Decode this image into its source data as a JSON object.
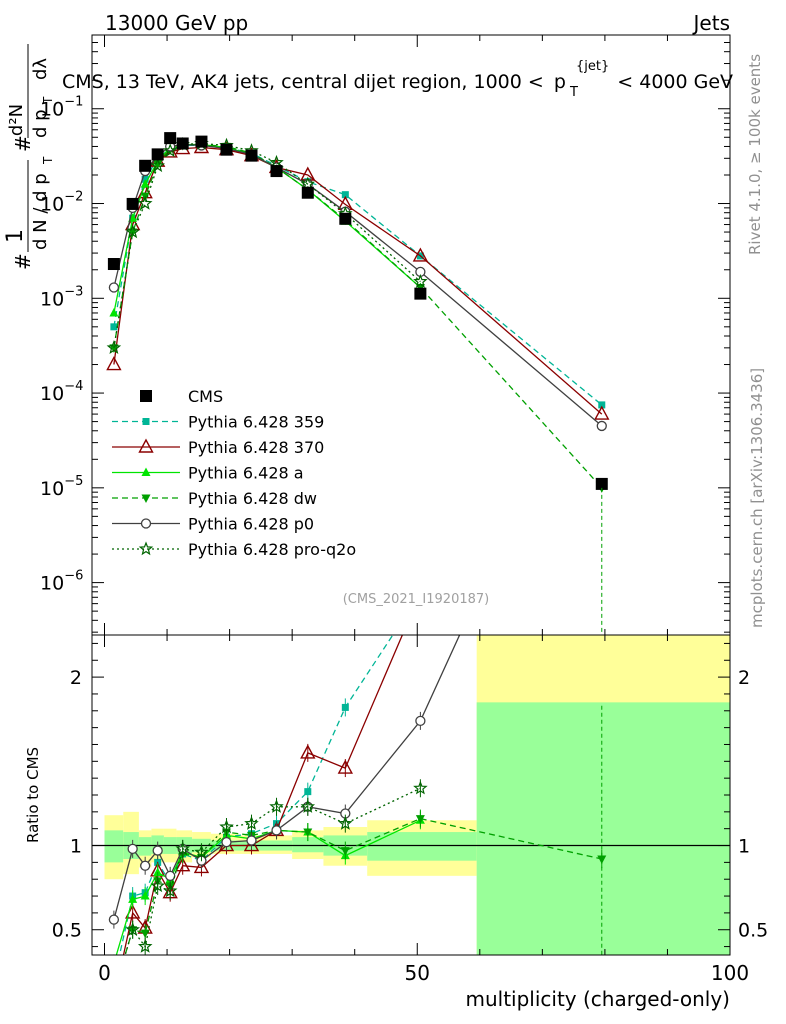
{
  "header": {
    "left": "13000 GeV pp",
    "right": "Jets"
  },
  "side_labels": {
    "rivet": "Rivet 4.1.0, ≥ 100k events",
    "mcplots": "mcplots.cern.ch [arXiv:1306.3436]"
  },
  "watermark": "(CMS_2021_I1920187)",
  "chart_data": [
    {
      "type": "line",
      "title": "CMS, 13 TeV, AK4 jets, central dijet region, 1000 < p_T^{jet} < 4000 GeV",
      "title_parts": {
        "lead": "CMS, 13 TeV, AK4 jets, central dijet region, 1000 <",
        "p": "p",
        "sub": "T",
        "sup": "{jet}",
        "tail": "< 4000 GeV"
      },
      "ylabel": "1/(dN/dp_T) d²N/(dp_T dλ)",
      "ylabel_parts": {
        "hash": "#",
        "one": "1",
        "den": "d N / d p",
        "sub": "T",
        "d2n": "d²N",
        "dpt": "d p",
        "dl": "dλ"
      },
      "yscale": "log",
      "ylim": [
        2.8e-07,
        0.6
      ],
      "xlim": [
        -2,
        100
      ],
      "y_ticks": [
        {
          "v": 1e-06,
          "label": "10",
          "exp": "−6"
        },
        {
          "v": 1e-05,
          "label": "10",
          "exp": "−5"
        },
        {
          "v": 0.0001,
          "label": "10",
          "exp": "−4"
        },
        {
          "v": 0.001,
          "label": "10",
          "exp": "−3"
        },
        {
          "v": 0.01,
          "label": "10",
          "exp": "−2"
        },
        {
          "v": 0.1,
          "label": "10",
          "exp": "−1"
        }
      ],
      "legend_position": "middle-left",
      "series": [
        {
          "name": "CMS",
          "style": "data",
          "color": "#000000",
          "x": [
            1.5,
            4.5,
            6.5,
            8.5,
            10.5,
            12.5,
            15.5,
            19.5,
            23.5,
            27.5,
            32.5,
            38.5,
            50.5,
            79.5
          ],
          "y": [
            0.0023,
            0.0099,
            0.025,
            0.033,
            0.049,
            0.043,
            0.045,
            0.037,
            0.032,
            0.022,
            0.013,
            0.0069,
            0.00112,
            1.1e-05
          ],
          "err": [
            0.0002,
            0.0006,
            0.001,
            0.001,
            0.0015,
            0.0012,
            0.0012,
            0.001,
            0.001,
            0.0008,
            0.0006,
            0.0004,
            0.0001,
            1e-06
          ]
        },
        {
          "name": "Pythia 6.428 359",
          "style": "dashed",
          "marker": "square",
          "color": "#00b596",
          "x": [
            1.5,
            4.5,
            6.5,
            8.5,
            10.5,
            12.5,
            15.5,
            19.5,
            23.5,
            27.5,
            32.5,
            38.5,
            50.5,
            79.5
          ],
          "y": [
            0.0005,
            0.007,
            0.018,
            0.03,
            0.038,
            0.041,
            0.041,
            0.039,
            0.034,
            0.025,
            0.017,
            0.0124,
            0.0028,
            7.5e-05
          ]
        },
        {
          "name": "Pythia 6.428 370",
          "style": "solid",
          "marker": "open-triangle",
          "color": "#8b0000",
          "x": [
            1.5,
            4.5,
            6.5,
            8.5,
            10.5,
            12.5,
            15.5,
            19.5,
            23.5,
            27.5,
            32.5,
            38.5,
            50.5,
            79.5
          ],
          "y": [
            0.0002,
            0.006,
            0.013,
            0.028,
            0.035,
            0.038,
            0.039,
            0.037,
            0.032,
            0.024,
            0.02,
            0.0098,
            0.0028,
            6e-05
          ]
        },
        {
          "name": "Pythia 6.428 a",
          "style": "solid",
          "marker": "filled-triangle",
          "color": "#00e500",
          "x": [
            1.5,
            4.5,
            6.5,
            8.5,
            10.5,
            12.5,
            15.5,
            19.5,
            23.5,
            27.5,
            32.5,
            38.5,
            50.5
          ],
          "y": [
            0.0007,
            0.007,
            0.016,
            0.028,
            0.039,
            0.042,
            0.042,
            0.039,
            0.033,
            0.024,
            0.014,
            0.0065,
            0.0013
          ]
        },
        {
          "name": "Pythia 6.428 dw",
          "style": "dashed",
          "marker": "filled-triangle-down",
          "color": "#00a000",
          "x": [
            1.5,
            4.5,
            6.5,
            8.5,
            10.5,
            12.5,
            15.5,
            19.5,
            23.5,
            27.5,
            32.5,
            38.5,
            50.5,
            79.5
          ],
          "y": [
            0.0003,
            0.005,
            0.012,
            0.026,
            0.037,
            0.041,
            0.042,
            0.04,
            0.034,
            0.024,
            0.014,
            0.0067,
            0.0013,
            1e-05
          ]
        },
        {
          "name": "Pythia 6.428 p0",
          "style": "solid",
          "marker": "open-circle",
          "color": "#404040",
          "x": [
            1.5,
            4.5,
            6.5,
            8.5,
            10.5,
            12.5,
            15.5,
            19.5,
            23.5,
            27.5,
            32.5,
            38.5,
            50.5,
            79.5
          ],
          "y": [
            0.0013,
            0.009,
            0.022,
            0.032,
            0.04,
            0.042,
            0.041,
            0.038,
            0.033,
            0.024,
            0.016,
            0.0082,
            0.0019,
            4.5e-05
          ]
        },
        {
          "name": "Pythia 6.428 pro-q2o",
          "style": "dotted",
          "marker": "open-star",
          "color": "#006400",
          "x": [
            1.5,
            4.5,
            6.5,
            8.5,
            10.5,
            12.5,
            15.5,
            19.5,
            23.5,
            27.5,
            32.5,
            38.5,
            50.5
          ],
          "y": [
            0.0003,
            0.005,
            0.01,
            0.025,
            0.036,
            0.042,
            0.043,
            0.041,
            0.036,
            0.027,
            0.016,
            0.0078,
            0.0015
          ]
        }
      ]
    },
    {
      "type": "line",
      "title": "",
      "xlabel": "multiplicity (charged-only)",
      "ylabel": "Ratio to CMS",
      "xlim": [
        -2,
        100
      ],
      "ylim": [
        0.35,
        2.25
      ],
      "x_ticks": [
        0,
        50,
        100
      ],
      "y_ticks": [
        0.5,
        1,
        2
      ],
      "bands": [
        {
          "x0": 0,
          "x1": 3,
          "yellow": [
            0.8,
            1.18
          ],
          "green": [
            0.9,
            1.09
          ]
        },
        {
          "x0": 3,
          "x1": 5.5,
          "yellow": [
            0.83,
            1.2
          ],
          "green": [
            0.92,
            1.08
          ]
        },
        {
          "x0": 5.5,
          "x1": 7.5,
          "yellow": [
            0.87,
            1.09
          ],
          "green": [
            0.94,
            1.05
          ]
        },
        {
          "x0": 7.5,
          "x1": 9.5,
          "yellow": [
            0.9,
            1.1
          ],
          "green": [
            0.95,
            1.06
          ]
        },
        {
          "x0": 9.5,
          "x1": 11.5,
          "yellow": [
            0.9,
            1.1
          ],
          "green": [
            0.95,
            1.05
          ]
        },
        {
          "x0": 11.5,
          "x1": 14,
          "yellow": [
            0.9,
            1.09
          ],
          "green": [
            0.95,
            1.05
          ]
        },
        {
          "x0": 14,
          "x1": 17,
          "yellow": [
            0.93,
            1.08
          ],
          "green": [
            0.96,
            1.04
          ]
        },
        {
          "x0": 17,
          "x1": 21.5,
          "yellow": [
            0.95,
            1.07
          ],
          "green": [
            0.97,
            1.03
          ]
        },
        {
          "x0": 21.5,
          "x1": 25.5,
          "yellow": [
            0.95,
            1.06
          ],
          "green": [
            0.97,
            1.03
          ]
        },
        {
          "x0": 25.5,
          "x1": 30,
          "yellow": [
            0.95,
            1.06
          ],
          "green": [
            0.97,
            1.03
          ]
        },
        {
          "x0": 30,
          "x1": 35,
          "yellow": [
            0.92,
            1.09
          ],
          "green": [
            0.96,
            1.05
          ]
        },
        {
          "x0": 35,
          "x1": 42,
          "yellow": [
            0.88,
            1.11
          ],
          "green": [
            0.94,
            1.06
          ]
        },
        {
          "x0": 42,
          "x1": 59.5,
          "yellow": [
            0.82,
            1.15
          ],
          "green": [
            0.91,
            1.08
          ]
        },
        {
          "x0": 59.5,
          "x1": 100,
          "yellow": [
            0.0,
            2.9
          ],
          "green": [
            0.0,
            1.85
          ]
        }
      ],
      "series": [
        {
          "name": "CMS",
          "style": "reference",
          "color": "#000000",
          "x": [
            0,
            100
          ],
          "y": [
            1,
            1
          ]
        },
        {
          "name": "Pythia 6.428 359",
          "style": "dashed",
          "marker": "square",
          "color": "#00b596",
          "x": [
            1.5,
            4.5,
            6.5,
            8.5,
            10.5,
            12.5,
            15.5,
            19.5,
            23.5,
            27.5,
            32.5,
            38.5,
            50.5
          ],
          "y": [
            0.2,
            0.7,
            0.72,
            0.9,
            0.78,
            0.95,
            0.91,
            1.05,
            1.07,
            1.13,
            1.32,
            1.82,
            2.5
          ]
        },
        {
          "name": "Pythia 6.428 370",
          "style": "solid",
          "marker": "open-triangle",
          "color": "#8b0000",
          "x": [
            1.5,
            4.5,
            6.5,
            8.5,
            10.5,
            12.5,
            15.5,
            19.5,
            23.5,
            27.5,
            32.5,
            38.5,
            50.5
          ],
          "y": [
            0.09,
            0.6,
            0.51,
            0.85,
            0.72,
            0.88,
            0.87,
            1.0,
            1.0,
            1.09,
            1.55,
            1.46,
            2.5
          ]
        },
        {
          "name": "Pythia 6.428 a",
          "style": "solid",
          "marker": "filled-triangle",
          "color": "#00e500",
          "x": [
            1.5,
            4.5,
            6.5,
            8.5,
            10.5,
            12.5,
            15.5,
            19.5,
            23.5,
            27.5,
            32.5,
            38.5,
            50.5
          ],
          "y": [
            0.3,
            0.68,
            0.7,
            0.84,
            0.8,
            0.96,
            0.93,
            1.06,
            1.04,
            1.09,
            1.08,
            0.94,
            1.15
          ]
        },
        {
          "name": "Pythia 6.428 dw",
          "style": "dashed",
          "marker": "filled-triangle-down",
          "color": "#00a000",
          "x": [
            1.5,
            4.5,
            6.5,
            8.5,
            10.5,
            12.5,
            15.5,
            19.5,
            23.5,
            27.5,
            32.5,
            38.5,
            50.5,
            79.5
          ],
          "y": [
            0.13,
            0.5,
            0.48,
            0.79,
            0.76,
            0.95,
            0.93,
            1.08,
            1.06,
            1.09,
            1.08,
            0.97,
            1.16,
            0.92
          ]
        },
        {
          "name": "Pythia 6.428 p0",
          "style": "solid",
          "marker": "open-circle",
          "color": "#404040",
          "x": [
            1.5,
            4.5,
            6.5,
            8.5,
            10.5,
            12.5,
            15.5,
            19.5,
            23.5,
            27.5,
            32.5,
            38.5,
            50.5,
            79.5
          ],
          "y": [
            0.56,
            0.98,
            0.88,
            0.97,
            0.82,
            0.98,
            0.91,
            1.02,
            1.03,
            1.09,
            1.23,
            1.19,
            1.74,
            4.1
          ]
        },
        {
          "name": "Pythia 6.428 pro-q2o",
          "style": "dotted",
          "marker": "open-star",
          "color": "#006400",
          "x": [
            1.5,
            4.5,
            6.5,
            8.5,
            10.5,
            12.5,
            15.5,
            19.5,
            23.5,
            27.5,
            32.5,
            38.5,
            50.5
          ],
          "y": [
            0.13,
            0.5,
            0.4,
            0.76,
            0.73,
            0.98,
            0.96,
            1.11,
            1.13,
            1.23,
            1.23,
            1.13,
            1.34
          ]
        }
      ]
    }
  ]
}
